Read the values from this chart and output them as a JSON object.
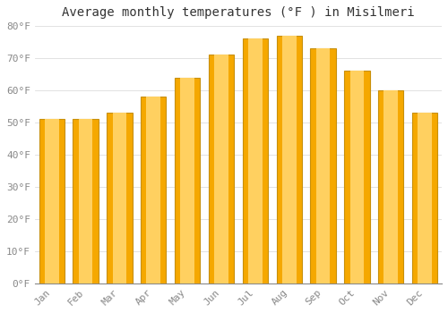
{
  "title": "Average monthly temperatures (°F ) in Misilmeri",
  "months": [
    "Jan",
    "Feb",
    "Mar",
    "Apr",
    "May",
    "Jun",
    "Jul",
    "Aug",
    "Sep",
    "Oct",
    "Nov",
    "Dec"
  ],
  "values": [
    51,
    51,
    53,
    58,
    64,
    71,
    76,
    77,
    73,
    66,
    60,
    53
  ],
  "bar_color_center": "#FFD060",
  "bar_color_edge": "#F5A800",
  "bar_outline_color": "#C8900A",
  "background_color": "#FFFFFF",
  "plot_bg_color": "#FFFFFF",
  "grid_color": "#DDDDDD",
  "title_fontsize": 10,
  "tick_fontsize": 8,
  "tick_color": "#888888",
  "ylim": [
    0,
    80
  ],
  "yticks": [
    0,
    10,
    20,
    30,
    40,
    50,
    60,
    70,
    80
  ],
  "ytick_labels": [
    "0°F",
    "10°F",
    "20°F",
    "30°F",
    "40°F",
    "50°F",
    "60°F",
    "70°F",
    "80°F"
  ],
  "bar_width": 0.75
}
